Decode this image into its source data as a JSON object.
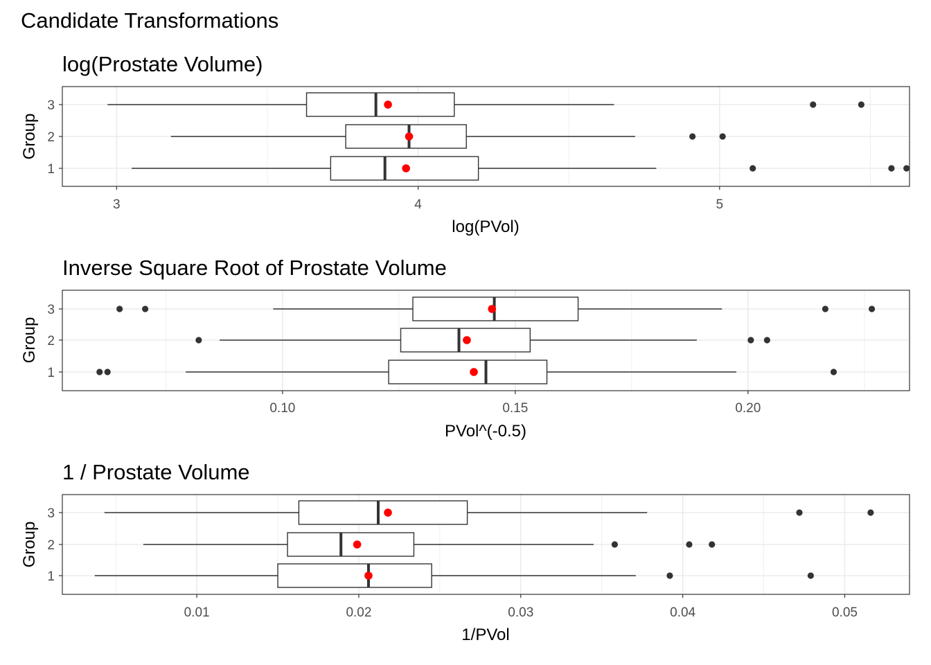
{
  "colors": {
    "outline": "#333333",
    "mean_point": "#FF0000",
    "outlier": "#333333",
    "grid": "#EBEBEB"
  },
  "chart_data": {
    "title": "Candidate Transformations",
    "panels": [
      {
        "type": "boxplot",
        "orientation": "horizontal",
        "title": "log(Prostate Volume)",
        "xlabel": "log(PVol)",
        "ylabel": "Group",
        "xlim": [
          2.82,
          5.63
        ],
        "xticks": [
          3,
          4,
          5
        ],
        "xtick_labels": [
          "3",
          "4",
          "5"
        ],
        "grid": true,
        "groups": [
          {
            "group": "3",
            "whisker_low": 2.97,
            "q1": 3.63,
            "median": 3.86,
            "q3": 4.12,
            "whisker_high": 4.65,
            "mean": 3.9,
            "outliers": [
              5.31,
              5.47
            ]
          },
          {
            "group": "2",
            "whisker_low": 3.18,
            "q1": 3.76,
            "median": 3.97,
            "q3": 4.16,
            "whisker_high": 4.72,
            "mean": 3.97,
            "outliers": [
              4.91,
              5.01
            ]
          },
          {
            "group": "1",
            "whisker_low": 3.05,
            "q1": 3.71,
            "median": 3.89,
            "q3": 4.2,
            "whisker_high": 4.79,
            "mean": 3.96,
            "outliers": [
              5.11,
              5.57,
              5.62
            ]
          }
        ]
      },
      {
        "type": "boxplot",
        "orientation": "horizontal",
        "title": "Inverse Square Root of Prostate Volume",
        "xlabel": "PVol^(-0.5)",
        "ylabel": "Group",
        "xlim": [
          0.0527,
          0.2347
        ],
        "xticks": [
          0.1,
          0.15,
          0.2
        ],
        "xtick_labels": [
          "0.10",
          "0.15",
          "0.20"
        ],
        "grid": true,
        "groups": [
          {
            "group": "3",
            "whisker_low": 0.098,
            "q1": 0.128,
            "median": 0.1455,
            "q3": 0.1635,
            "whisker_high": 0.1944,
            "mean": 0.145,
            "outliers": [
              0.065,
              0.0705,
              0.2166,
              0.2266
            ]
          },
          {
            "group": "2",
            "whisker_low": 0.0865,
            "q1": 0.1254,
            "median": 0.1379,
            "q3": 0.1532,
            "whisker_high": 0.189,
            "mean": 0.1396,
            "outliers": [
              0.082,
              0.2006,
              0.2041
            ]
          },
          {
            "group": "1",
            "whisker_low": 0.0792,
            "q1": 0.1228,
            "median": 0.1437,
            "q3": 0.1568,
            "whisker_high": 0.1975,
            "mean": 0.1411,
            "outliers": [
              0.0607,
              0.0624,
              0.2184
            ]
          }
        ]
      },
      {
        "type": "boxplot",
        "orientation": "horizontal",
        "title": "1 / Prostate Volume",
        "xlabel": "1/PVol",
        "ylabel": "Group",
        "xlim": [
          0.0017,
          0.054
        ],
        "xticks": [
          0.01,
          0.02,
          0.03,
          0.04,
          0.05
        ],
        "xtick_labels": [
          "0.01",
          "0.02",
          "0.03",
          "0.04",
          "0.05"
        ],
        "grid": true,
        "groups": [
          {
            "group": "3",
            "whisker_low": 0.0043,
            "q1": 0.0163,
            "median": 0.0212,
            "q3": 0.0267,
            "whisker_high": 0.0378,
            "mean": 0.0218,
            "outliers": [
              0.0472,
              0.0516
            ]
          },
          {
            "group": "2",
            "whisker_low": 0.0067,
            "q1": 0.0156,
            "median": 0.0189,
            "q3": 0.0234,
            "whisker_high": 0.0345,
            "mean": 0.0199,
            "outliers": [
              0.0358,
              0.0404,
              0.0418
            ]
          },
          {
            "group": "1",
            "whisker_low": 0.0037,
            "q1": 0.015,
            "median": 0.0206,
            "q3": 0.0245,
            "whisker_high": 0.0371,
            "mean": 0.0206,
            "outliers": [
              0.0392,
              0.0479
            ]
          }
        ]
      }
    ]
  }
}
